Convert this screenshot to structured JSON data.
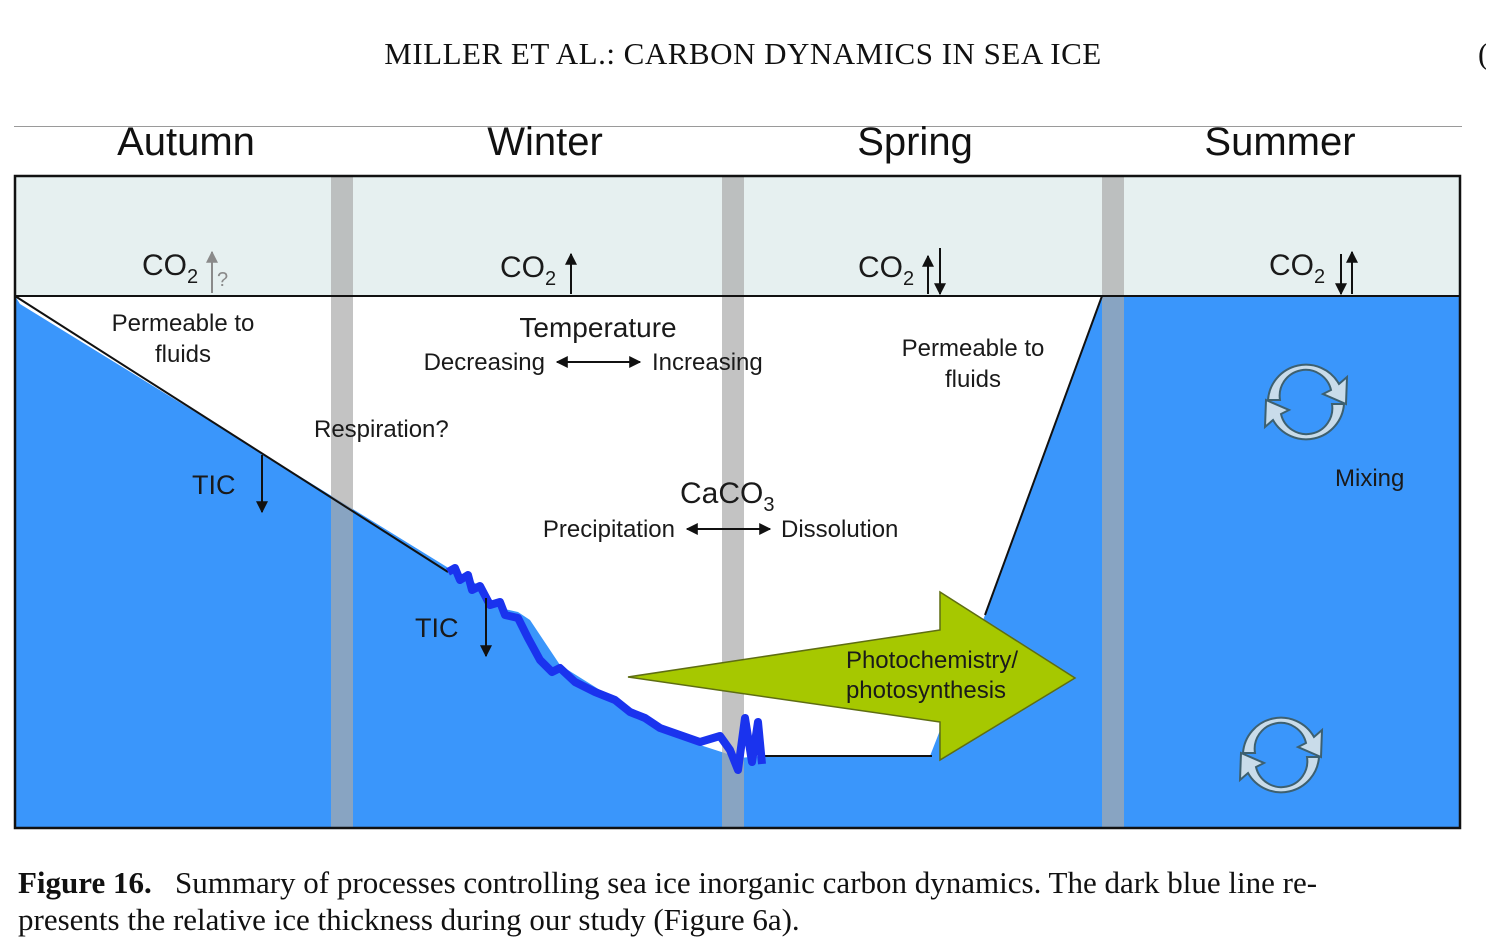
{
  "header": {
    "title": "MILLER ET AL.: CARBON DYNAMICS IN SEA ICE",
    "edge_mark": "("
  },
  "seasons": [
    "Autumn",
    "Winter",
    "Spring",
    "Summer"
  ],
  "diagram": {
    "colors": {
      "atmosphere": "#e6f0f0",
      "seawater": "#3a96fb",
      "ice": "#ffffff",
      "ice_thickness_line": "#1a33ee",
      "arrow": "#a6c800",
      "divider": "#a9a9a9"
    },
    "co2": {
      "base": "CO",
      "sub": "2",
      "question": "?"
    },
    "autumn": {
      "permeable_l1": "Permeable to",
      "permeable_l2": "fluids",
      "tic": "TIC"
    },
    "winter": {
      "temperature": "Temperature",
      "decreasing": "Decreasing",
      "increasing": "Increasing",
      "respiration": "Respiration?",
      "tic": "TIC"
    },
    "caco3": {
      "base": "CaCO",
      "sub": "3",
      "precipitation": "Precipitation",
      "dissolution": "Dissolution"
    },
    "spring": {
      "permeable_l1": "Permeable to",
      "permeable_l2": "fluids"
    },
    "photo": {
      "l1": "Photochemistry/",
      "l2": "photosynthesis"
    },
    "summer": {
      "mixing": "Mixing"
    }
  },
  "caption": {
    "label": "Figure 16.",
    "line1": "Summary of processes controlling sea ice inorganic carbon dynamics. The dark blue line re-",
    "line2": "presents the relative ice thickness during our study (Figure 6a)."
  }
}
